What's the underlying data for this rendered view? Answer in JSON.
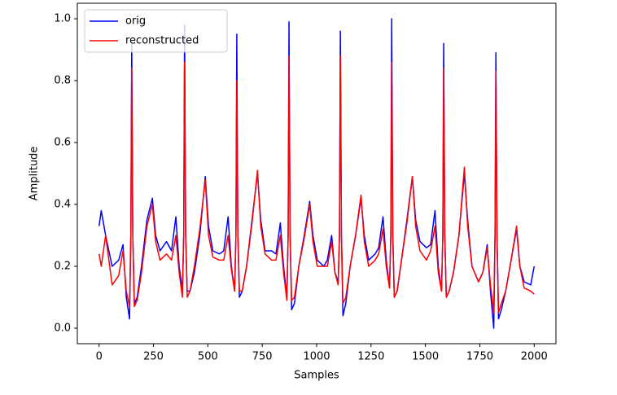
{
  "chart_data": {
    "type": "line",
    "xlabel": "Samples",
    "ylabel": "Amplitude",
    "x": [
      0,
      10,
      30,
      60,
      90,
      110,
      125,
      140,
      146,
      150,
      155,
      162,
      175,
      195,
      220,
      245,
      260,
      280,
      310,
      333,
      353,
      368,
      383,
      389,
      393,
      398,
      405,
      418,
      438,
      463,
      488,
      503,
      523,
      553,
      573,
      593,
      608,
      623,
      629,
      633,
      638,
      645,
      658,
      678,
      703,
      728,
      743,
      763,
      793,
      813,
      833,
      848,
      863,
      869,
      873,
      878,
      885,
      898,
      918,
      943,
      968,
      983,
      1003,
      1033,
      1049,
      1069,
      1084,
      1099,
      1105,
      1109,
      1114,
      1121,
      1134,
      1154,
      1179,
      1204,
      1219,
      1239,
      1269,
      1285,
      1305,
      1320,
      1335,
      1341,
      1345,
      1350,
      1357,
      1370,
      1390,
      1415,
      1440,
      1455,
      1475,
      1505,
      1524,
      1544,
      1559,
      1574,
      1580,
      1584,
      1589,
      1596,
      1609,
      1629,
      1654,
      1679,
      1694,
      1714,
      1744,
      1764,
      1784,
      1799,
      1814,
      1820,
      1824,
      1829,
      1836,
      1849,
      1869,
      1894,
      1919,
      1934,
      1954,
      1984,
      2000
    ],
    "series": [
      {
        "name": "orig",
        "color": "#0000ff",
        "values": [
          0.33,
          0.38,
          0.3,
          0.2,
          0.22,
          0.27,
          0.1,
          0.03,
          0.3,
          0.92,
          0.3,
          0.08,
          0.1,
          0.2,
          0.35,
          0.42,
          0.3,
          0.25,
          0.28,
          0.25,
          0.36,
          0.2,
          0.12,
          0.3,
          0.98,
          0.3,
          0.12,
          0.12,
          0.18,
          0.3,
          0.49,
          0.33,
          0.25,
          0.24,
          0.25,
          0.36,
          0.2,
          0.12,
          0.3,
          0.95,
          0.3,
          0.1,
          0.12,
          0.2,
          0.35,
          0.5,
          0.35,
          0.25,
          0.25,
          0.24,
          0.34,
          0.2,
          0.1,
          0.3,
          0.99,
          0.3,
          0.06,
          0.08,
          0.2,
          0.3,
          0.41,
          0.3,
          0.22,
          0.2,
          0.22,
          0.3,
          0.18,
          0.15,
          0.3,
          0.96,
          0.3,
          0.04,
          0.08,
          0.2,
          0.3,
          0.42,
          0.3,
          0.22,
          0.24,
          0.26,
          0.36,
          0.22,
          0.13,
          0.3,
          1.0,
          0.3,
          0.1,
          0.12,
          0.22,
          0.35,
          0.49,
          0.35,
          0.28,
          0.26,
          0.27,
          0.38,
          0.2,
          0.12,
          0.3,
          0.92,
          0.3,
          0.1,
          0.12,
          0.18,
          0.3,
          0.5,
          0.35,
          0.2,
          0.15,
          0.18,
          0.27,
          0.12,
          0.0,
          0.3,
          0.89,
          0.3,
          0.03,
          0.06,
          0.12,
          0.22,
          0.32,
          0.2,
          0.15,
          0.14,
          0.2
        ]
      },
      {
        "name": "reconstructed",
        "color": "#ff0000",
        "values": [
          0.24,
          0.2,
          0.3,
          0.14,
          0.17,
          0.25,
          0.12,
          0.07,
          0.3,
          0.84,
          0.3,
          0.07,
          0.09,
          0.18,
          0.33,
          0.4,
          0.28,
          0.22,
          0.24,
          0.22,
          0.3,
          0.18,
          0.1,
          0.3,
          0.86,
          0.3,
          0.1,
          0.12,
          0.2,
          0.32,
          0.48,
          0.3,
          0.23,
          0.22,
          0.22,
          0.3,
          0.19,
          0.12,
          0.3,
          0.8,
          0.3,
          0.12,
          0.12,
          0.2,
          0.34,
          0.51,
          0.33,
          0.24,
          0.22,
          0.22,
          0.3,
          0.18,
          0.09,
          0.3,
          0.88,
          0.3,
          0.09,
          0.1,
          0.2,
          0.29,
          0.4,
          0.28,
          0.2,
          0.2,
          0.2,
          0.28,
          0.18,
          0.14,
          0.3,
          0.88,
          0.3,
          0.08,
          0.1,
          0.2,
          0.3,
          0.43,
          0.28,
          0.2,
          0.22,
          0.24,
          0.32,
          0.2,
          0.13,
          0.3,
          0.86,
          0.3,
          0.1,
          0.12,
          0.22,
          0.34,
          0.49,
          0.33,
          0.25,
          0.22,
          0.25,
          0.33,
          0.18,
          0.12,
          0.3,
          0.84,
          0.3,
          0.1,
          0.12,
          0.18,
          0.3,
          0.52,
          0.33,
          0.2,
          0.15,
          0.18,
          0.26,
          0.14,
          0.05,
          0.3,
          0.83,
          0.3,
          0.05,
          0.08,
          0.12,
          0.22,
          0.33,
          0.2,
          0.13,
          0.12,
          0.11
        ]
      }
    ],
    "xlim": [
      -100,
      2100
    ],
    "xticks": [
      0,
      250,
      500,
      750,
      1000,
      1250,
      1500,
      1750,
      2000
    ],
    "ylim": [
      -0.05,
      1.05
    ],
    "yticks": [
      {
        "value": 0,
        "label": "0.0"
      },
      0.2,
      0.4,
      0.6,
      0.8,
      {
        "value": 1,
        "label": "1.0"
      }
    ],
    "grid": false,
    "legend": "upper left"
  }
}
